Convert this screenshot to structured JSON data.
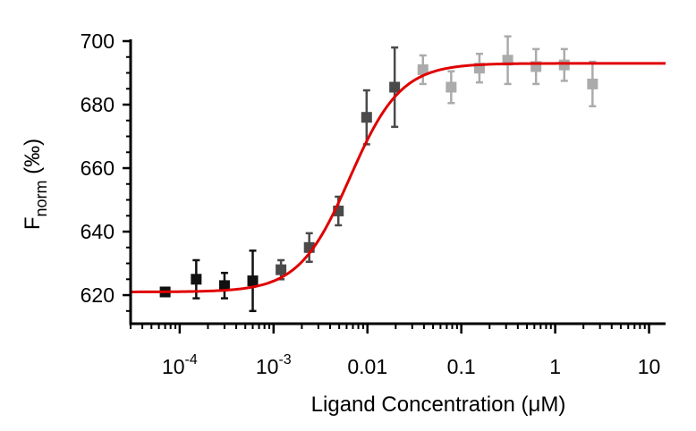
{
  "chart_data": {
    "type": "scatter",
    "title": "",
    "xlabel": "Ligand Concentration (μM)",
    "ylabel": "Fnorm (‰)",
    "ylabel_main": "F",
    "ylabel_sub": "norm",
    "ylabel_unit": " (‰)",
    "x_scale": "log",
    "xlim": [
      3e-05,
      15
    ],
    "ylim": [
      611,
      700
    ],
    "grid": false,
    "x_ticks": [
      {
        "value": 0.0001,
        "base": "10",
        "exp": "-4"
      },
      {
        "value": 0.001,
        "base": "10",
        "exp": "-3"
      },
      {
        "value": 0.01,
        "label": "0.01"
      },
      {
        "value": 0.1,
        "label": "0.1"
      },
      {
        "value": 1,
        "label": "1"
      },
      {
        "value": 10,
        "label": "10"
      }
    ],
    "y_ticks": [
      620,
      640,
      660,
      680,
      700
    ],
    "series": [
      {
        "type": "scatter",
        "color": "#111111",
        "points": [
          {
            "x": 7e-05,
            "y": 621,
            "err": 1
          },
          {
            "x": 0.00015,
            "y": 625,
            "err": 6
          },
          {
            "x": 0.0003,
            "y": 623,
            "err": 4
          },
          {
            "x": 0.0006,
            "y": 624.5,
            "err": 9.5
          }
        ]
      },
      {
        "type": "scatter",
        "color": "#4a4a4a",
        "points": [
          {
            "x": 0.0012,
            "y": 628,
            "err": 3
          },
          {
            "x": 0.0024,
            "y": 635,
            "err": 4.5
          },
          {
            "x": 0.0049,
            "y": 646.5,
            "err": 4.5
          },
          {
            "x": 0.0098,
            "y": 676,
            "err": 8.5
          },
          {
            "x": 0.0195,
            "y": 685.5,
            "err": 12.5
          }
        ]
      },
      {
        "type": "scatter",
        "color": "#ababab",
        "points": [
          {
            "x": 0.039,
            "y": 691,
            "err": 4.5
          },
          {
            "x": 0.078,
            "y": 685.5,
            "err": 5
          },
          {
            "x": 0.156,
            "y": 691.5,
            "err": 4.5
          },
          {
            "x": 0.3125,
            "y": 694,
            "err": 7.5
          },
          {
            "x": 0.625,
            "y": 692,
            "err": 5.5
          },
          {
            "x": 1.25,
            "y": 692.5,
            "err": 5
          },
          {
            "x": 2.5,
            "y": 686.5,
            "err": 7
          }
        ]
      }
    ],
    "fit": {
      "type": "line",
      "color": "#e00000",
      "model": "sigmoid",
      "bottom": 621,
      "top": 693,
      "ec50": 0.0065,
      "hill": 1.6
    }
  }
}
